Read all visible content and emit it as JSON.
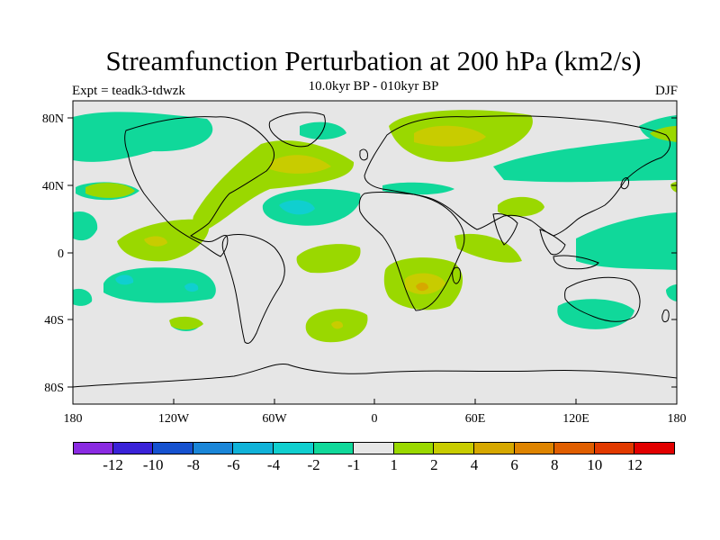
{
  "title": "Streamfunction Perturbation at 200 hPa (km2/s)",
  "experiment": "Expt = teadk3-tdwzk",
  "subtitle": "10.0kyr BP - 010kyr BP",
  "season": "DJF",
  "map": {
    "lat_ticks": [
      "80N",
      "40N",
      "0",
      "40S",
      "80S"
    ],
    "lon_ticks": [
      "180",
      "120W",
      "60W",
      "0",
      "60E",
      "120E",
      "180"
    ],
    "land_color": "#000000",
    "background_color": "#e6e6e6"
  },
  "colorbar": {
    "colors": [
      "#8a2be2",
      "#3a22d8",
      "#1652d0",
      "#1a86d8",
      "#10b2d8",
      "#10cfcf",
      "#10d89a",
      "#e6e6e6",
      "#9ad800",
      "#c8cc00",
      "#d6a800",
      "#de8400",
      "#e05e00",
      "#e23a00",
      "#e20000"
    ],
    "labels": [
      "-12",
      "-10",
      "-8",
      "-6",
      "-4",
      "-2",
      "-1",
      "1",
      "2",
      "4",
      "6",
      "8",
      "10",
      "12"
    ]
  }
}
